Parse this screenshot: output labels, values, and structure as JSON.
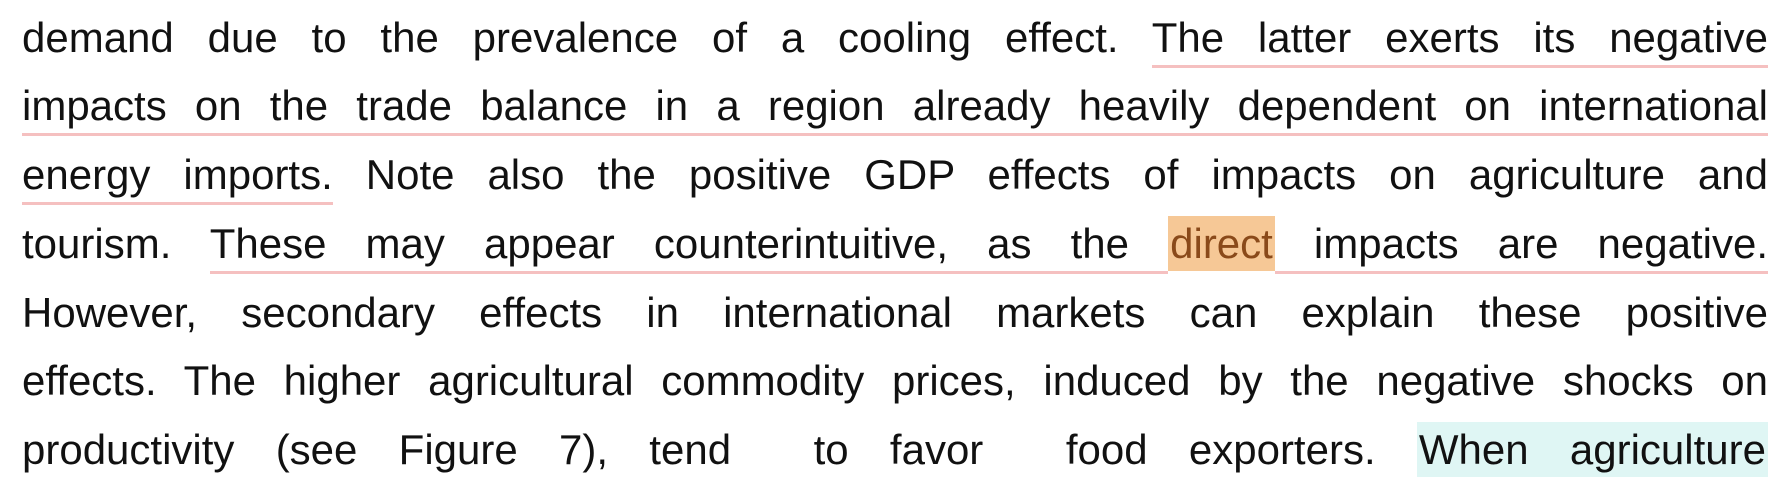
{
  "document": {
    "lines": [
      {
        "segments": [
          {
            "text": "demand due to the prevalence of a cooling effect. ",
            "style": "plain"
          },
          {
            "text": "The latter exerts its negative",
            "style": "underline"
          }
        ]
      },
      {
        "segments": [
          {
            "text": "impacts on the trade balance in a region already heavily dependent on international",
            "style": "underline"
          }
        ]
      },
      {
        "segments": [
          {
            "text": "energy imports.",
            "style": "underline"
          },
          {
            "text": " Note also the positive GDP effects of impacts on agriculture and",
            "style": "plain"
          }
        ]
      },
      {
        "segments": [
          {
            "text": "tourism. ",
            "style": "plain"
          },
          {
            "text": "These may appear counterintuitive, as the ",
            "style": "underline"
          },
          {
            "text": "direct",
            "style": "highlight-orange"
          },
          {
            "text": " impacts are negative.",
            "style": "underline"
          }
        ]
      },
      {
        "segments": [
          {
            "text": "However, secondary effects in international markets can explain these positive",
            "style": "plain"
          }
        ]
      },
      {
        "segments": [
          {
            "text": "effects. The higher agricultural commodity prices, induced by the negative shocks on",
            "style": "plain"
          }
        ]
      },
      {
        "segments": [
          {
            "text": "productivity (see Figure 7), tend  to favor  food exporters. ",
            "style": "plain"
          },
          {
            "text": "When agriculture",
            "style": "highlight-cyan"
          }
        ]
      }
    ],
    "colors": {
      "text": "#111111",
      "underline": "#f5c0c0",
      "highlight_orange": "#f6c896",
      "highlight_orange_text": "#8a4a1a",
      "highlight_cyan": "#dff6f4"
    }
  }
}
